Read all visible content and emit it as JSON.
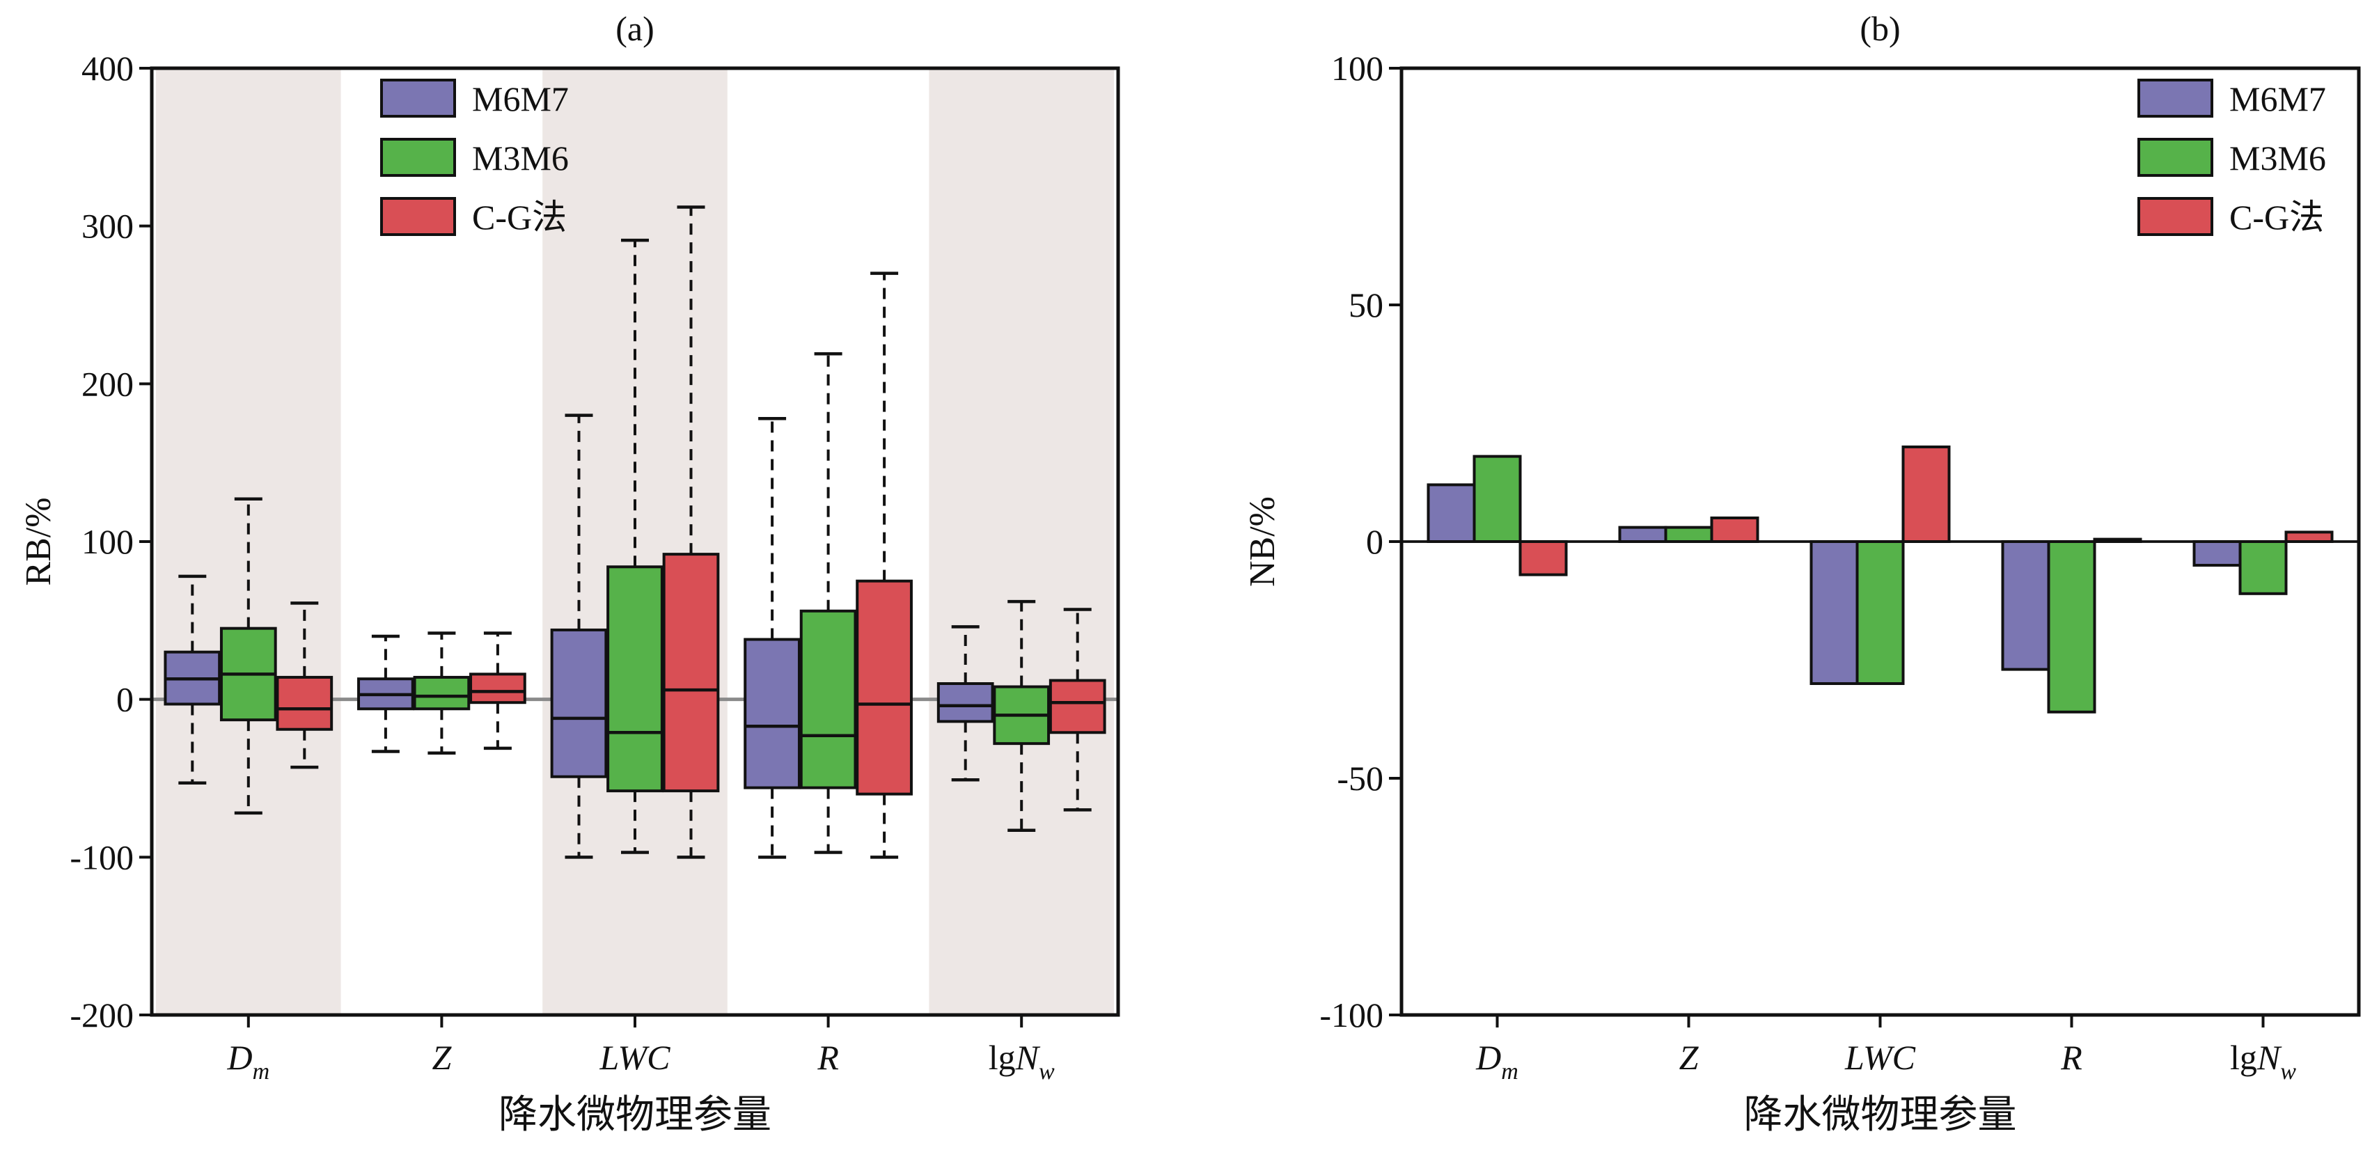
{
  "colors": {
    "m6m7": "#7b76b2",
    "m3m6": "#56b24a",
    "cg": "#d94f55",
    "shade": "#ede7e5",
    "zero_line_a": "#8a8a8a"
  },
  "chart_data": [
    {
      "id": "a",
      "type": "box",
      "title": "(a)",
      "xlabel": "降水微物理参量",
      "ylabel": "RB/%",
      "ylim": [
        -200,
        400
      ],
      "yticks": [
        "-200",
        "-100",
        "0",
        "100",
        "200",
        "300",
        "400"
      ],
      "categories": [
        {
          "base": "D",
          "sub": "m",
          "prefix": "",
          "italic": true
        },
        {
          "base": "Z",
          "sub": "",
          "prefix": "",
          "italic": true
        },
        {
          "base": "LWC",
          "sub": "",
          "prefix": "",
          "italic": true
        },
        {
          "base": "R",
          "sub": "",
          "prefix": "",
          "italic": true
        },
        {
          "base": "N",
          "sub": "w",
          "prefix": "lg",
          "italic": true
        }
      ],
      "shaded_categories": [
        0,
        2,
        4
      ],
      "legend": [
        "M6M7",
        "M3M6",
        "C-G法"
      ],
      "series": [
        {
          "name": "M6M7",
          "boxes": [
            {
              "whislo": -53,
              "q1": -3,
              "med": 13,
              "q3": 30,
              "whishi": 78
            },
            {
              "whislo": -33,
              "q1": -6,
              "med": 3,
              "q3": 13,
              "whishi": 40
            },
            {
              "whislo": -100,
              "q1": -49,
              "med": -12,
              "q3": 44,
              "whishi": 180
            },
            {
              "whislo": -100,
              "q1": -56,
              "med": -17,
              "q3": 38,
              "whishi": 178
            },
            {
              "whislo": -51,
              "q1": -14,
              "med": -4,
              "q3": 10,
              "whishi": 46
            }
          ]
        },
        {
          "name": "M3M6",
          "boxes": [
            {
              "whislo": -72,
              "q1": -13,
              "med": 16,
              "q3": 45,
              "whishi": 127
            },
            {
              "whislo": -34,
              "q1": -6,
              "med": 2,
              "q3": 14,
              "whishi": 42
            },
            {
              "whislo": -97,
              "q1": -58,
              "med": -21,
              "q3": 84,
              "whishi": 291
            },
            {
              "whislo": -97,
              "q1": -56,
              "med": -23,
              "q3": 56,
              "whishi": 219
            },
            {
              "whislo": -83,
              "q1": -28,
              "med": -10,
              "q3": 8,
              "whishi": 62
            }
          ]
        },
        {
          "name": "C-G法",
          "boxes": [
            {
              "whislo": -43,
              "q1": -19,
              "med": -6,
              "q3": 14,
              "whishi": 61
            },
            {
              "whislo": -31,
              "q1": -2,
              "med": 5,
              "q3": 16,
              "whishi": 42
            },
            {
              "whislo": -100,
              "q1": -58,
              "med": 6,
              "q3": 92,
              "whishi": 312
            },
            {
              "whislo": -100,
              "q1": -60,
              "med": -3,
              "q3": 75,
              "whishi": 270
            },
            {
              "whislo": -70,
              "q1": -21,
              "med": -2,
              "q3": 12,
              "whishi": 57
            }
          ]
        }
      ]
    },
    {
      "id": "b",
      "type": "bar",
      "title": "(b)",
      "xlabel": "降水微物理参量",
      "ylabel": "NB/%",
      "ylim": [
        -100,
        100
      ],
      "yticks": [
        "-100",
        "-50",
        "0",
        "50",
        "100"
      ],
      "categories": [
        {
          "base": "D",
          "sub": "m",
          "prefix": "",
          "italic": true
        },
        {
          "base": "Z",
          "sub": "",
          "prefix": "",
          "italic": true
        },
        {
          "base": "LWC",
          "sub": "",
          "prefix": "",
          "italic": true
        },
        {
          "base": "R",
          "sub": "",
          "prefix": "",
          "italic": true
        },
        {
          "base": "N",
          "sub": "w",
          "prefix": "lg",
          "italic": true
        }
      ],
      "legend": [
        "M6M7",
        "M3M6",
        "C-G法"
      ],
      "series": [
        {
          "name": "M6M7",
          "values": [
            12,
            3,
            -30,
            -27,
            -5
          ]
        },
        {
          "name": "M3M6",
          "values": [
            18,
            3,
            -30,
            -36,
            -11
          ]
        },
        {
          "name": "C-G法",
          "values": [
            -7,
            5,
            20,
            0.5,
            2
          ]
        }
      ]
    }
  ]
}
